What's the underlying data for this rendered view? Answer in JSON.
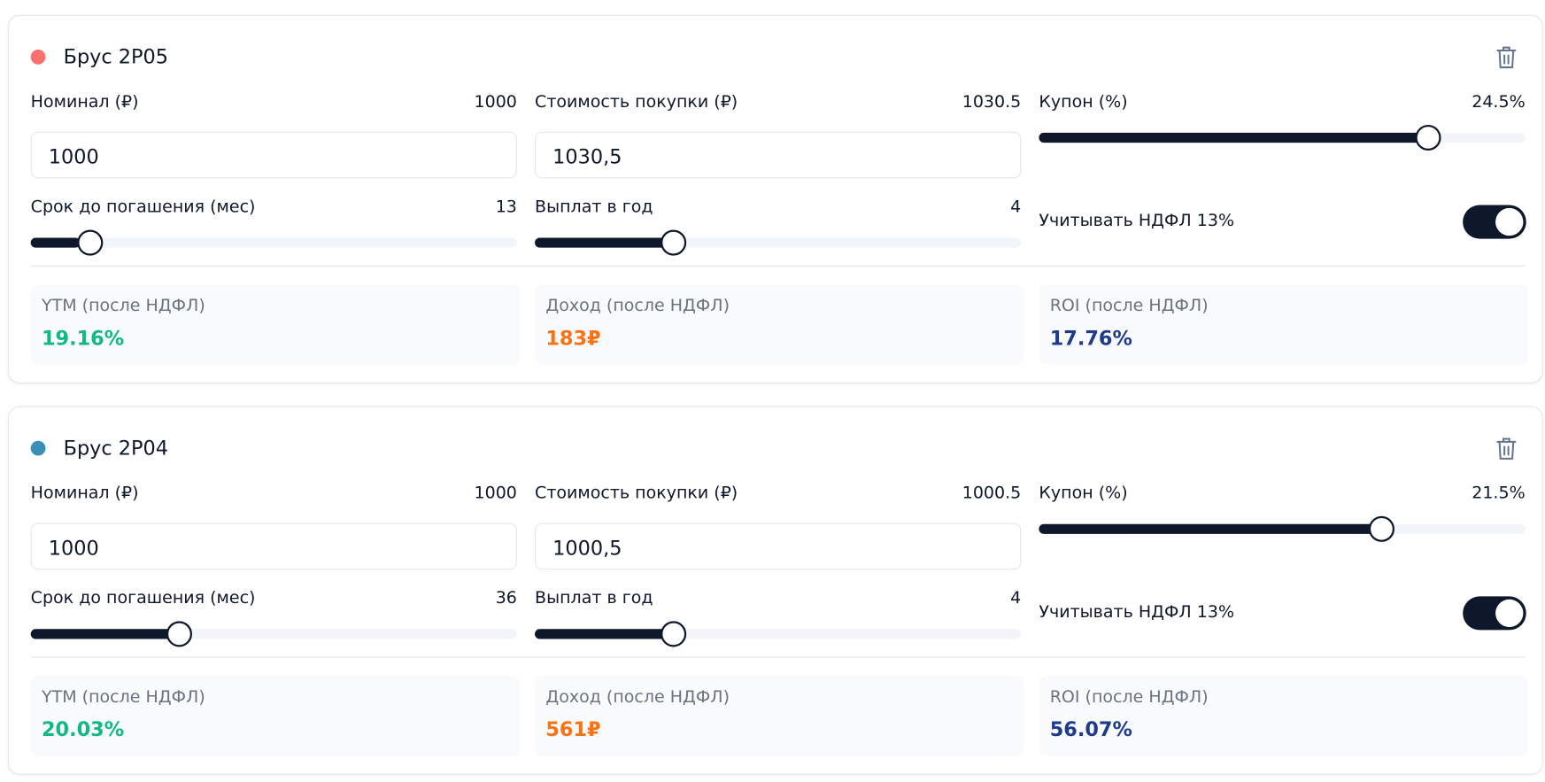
{
  "cards": [
    {
      "name": "Брус 2P05",
      "dot_color": "#f87171",
      "nominal": {
        "label": "Номинал (₽)",
        "value": "1000",
        "input": "1000"
      },
      "price": {
        "label": "Стоимость покупки (₽)",
        "value": "1030.5",
        "input": "1030,5"
      },
      "coupon": {
        "label": "Купон (%)",
        "value": 24.5,
        "value_label": "24.5%",
        "min": 0,
        "max": 30
      },
      "term": {
        "label": "Срок до погашения (мес)",
        "value": 13,
        "min": 1,
        "max": 120
      },
      "payments": {
        "label": "Выплат в год",
        "value": 4,
        "min": 1,
        "max": 12
      },
      "tax": {
        "label": "Учитывать НДФЛ 13%",
        "checked": true
      },
      "results": [
        {
          "label": "YTM (после НДФЛ)",
          "value": "19.16%",
          "color": "#10b981"
        },
        {
          "label": "Доход (после НДФЛ)",
          "value": "183₽",
          "color": "#f97316"
        },
        {
          "label": "ROI (после НДФЛ)",
          "value": "17.76%",
          "color": "#1e3a8a"
        }
      ]
    },
    {
      "name": "Брус 2P04",
      "dot_color": "#3b8fb5",
      "nominal": {
        "label": "Номинал (₽)",
        "value": "1000",
        "input": "1000"
      },
      "price": {
        "label": "Стоимость покупки (₽)",
        "value": "1000.5",
        "input": "1000,5"
      },
      "coupon": {
        "label": "Купон (%)",
        "value": 21.5,
        "value_label": "21.5%",
        "min": 0,
        "max": 30
      },
      "term": {
        "label": "Срок до погашения (мес)",
        "value": 36,
        "min": 1,
        "max": 120
      },
      "payments": {
        "label": "Выплат в год",
        "value": 4,
        "min": 1,
        "max": 12
      },
      "tax": {
        "label": "Учитывать НДФЛ 13%",
        "checked": true
      },
      "results": [
        {
          "label": "YTM (после НДФЛ)",
          "value": "20.03%",
          "color": "#10b981"
        },
        {
          "label": "Доход (после НДФЛ)",
          "value": "561₽",
          "color": "#f97316"
        },
        {
          "label": "ROI (после НДФЛ)",
          "value": "56.07%",
          "color": "#1e3a8a"
        }
      ]
    }
  ]
}
